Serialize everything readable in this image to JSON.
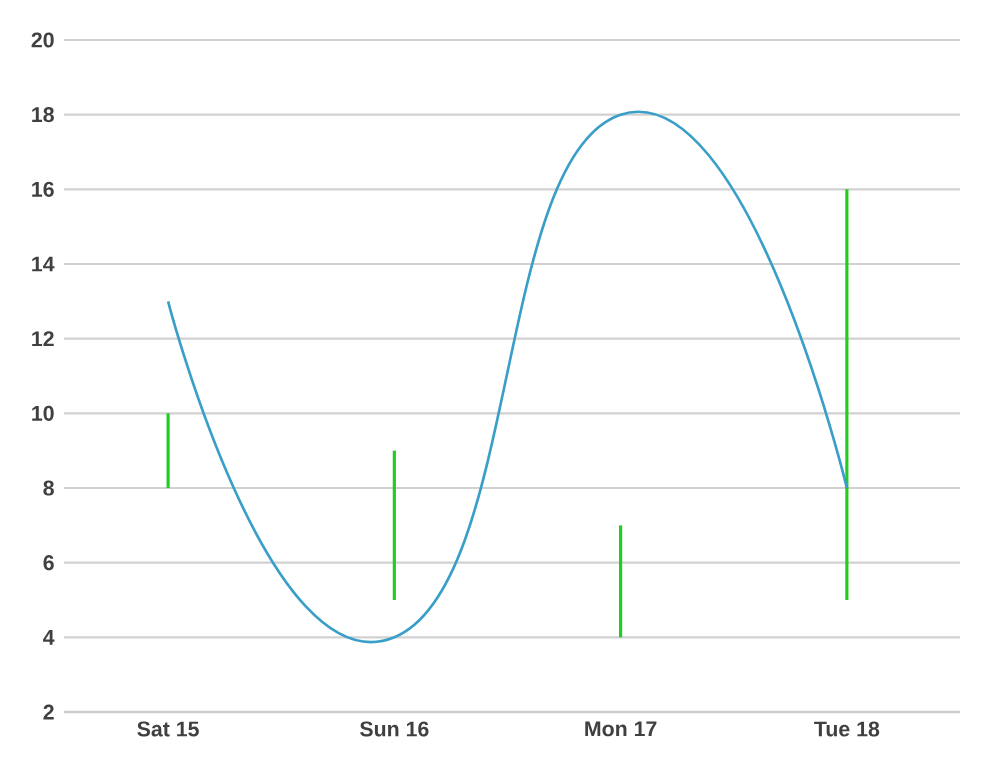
{
  "chart_data": {
    "type": "bar",
    "categories": [
      "Sat 15",
      "Sun 16",
      "Mon 17",
      "Tue 18"
    ],
    "series": [
      {
        "color": "#22cc22",
        "base": [
          8,
          5,
          4,
          5
        ],
        "values": [
          2,
          4,
          3,
          11
        ]
      },
      {
        "type": "line",
        "color": "#3a9fc8",
        "values": [
          13,
          4,
          18,
          8
        ]
      }
    ],
    "ylim": [
      2,
      20
    ],
    "yticks": [
      2,
      4,
      6,
      8,
      10,
      12,
      14,
      16,
      18,
      20
    ],
    "grid": "y",
    "marker": "none",
    "line_style": "solid"
  }
}
